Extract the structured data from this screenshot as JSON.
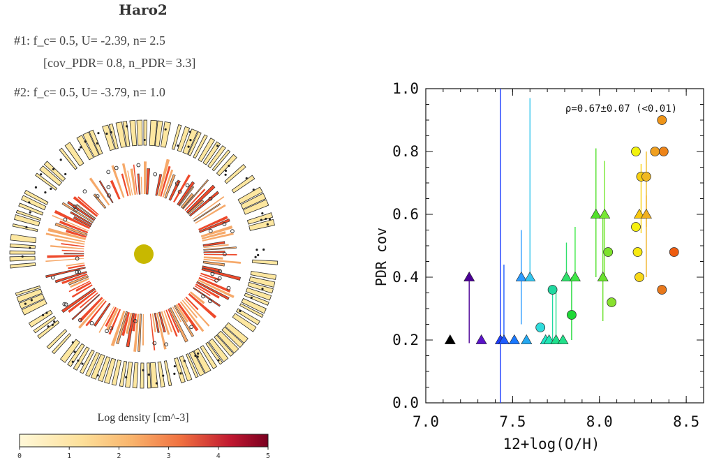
{
  "panel_left": {
    "title": "Haro2",
    "line1": "#1:  f_c= 0.5, U= -2.39, n= 2.5",
    "line2": "[cov_PDR= 0.8, n_PDR= 3.3]",
    "line3": "#2:  f_c= 0.5, U= -3.79, n= 1.0",
    "colorbar_label": "Log density [cm^-3]",
    "colorbar_ticks": [
      "0",
      "1",
      "2",
      "3",
      "4",
      "5"
    ],
    "colors": {
      "light": "#fde7a0",
      "mid": "#f6a96a",
      "red": "#ee4a2c",
      "dark": "#7a0020",
      "center": "#c8b800"
    }
  },
  "chart_data": {
    "type": "scatter",
    "xlabel": "12+log(O/H)",
    "ylabel": "PDR cov",
    "xlim": [
      7.0,
      8.6
    ],
    "ylim": [
      0.0,
      1.0
    ],
    "xticks": [
      "7.0",
      "7.5",
      "8.0",
      "8.5"
    ],
    "yticks": [
      "0.0",
      "0.2",
      "0.4",
      "0.6",
      "0.8",
      "1.0"
    ],
    "annotation": "ρ=0.67±0.07 (<0.01)",
    "points": [
      {
        "x": 7.14,
        "y": 0.2,
        "shape": "triangle",
        "color": "#000000"
      },
      {
        "x": 7.25,
        "y": 0.4,
        "shape": "triangle",
        "color": "#4b0096",
        "err_low": 0.19
      },
      {
        "x": 7.32,
        "y": 0.2,
        "shape": "triangle",
        "color": "#5a13c8"
      },
      {
        "x": 7.43,
        "y": 0.2,
        "shape": "triangle",
        "color": "#1c3cff",
        "err_low": 0.0,
        "err_high": 1.0
      },
      {
        "x": 7.45,
        "y": 0.2,
        "shape": "triangle",
        "color": "#1e5cff",
        "err_high": 0.44
      },
      {
        "x": 7.51,
        "y": 0.2,
        "shape": "triangle",
        "color": "#1a78ff"
      },
      {
        "x": 7.55,
        "y": 0.4,
        "shape": "triangle",
        "color": "#2c9bff",
        "err_low": 0.25,
        "err_high": 0.55
      },
      {
        "x": 7.58,
        "y": 0.2,
        "shape": "triangle",
        "color": "#24a8f0"
      },
      {
        "x": 7.6,
        "y": 0.4,
        "shape": "triangle",
        "color": "#34c6ee",
        "err_high": 0.97
      },
      {
        "x": 7.66,
        "y": 0.24,
        "shape": "circle",
        "color": "#2fdcdc"
      },
      {
        "x": 7.69,
        "y": 0.2,
        "shape": "triangle",
        "color": "#1ee8c8"
      },
      {
        "x": 7.71,
        "y": 0.2,
        "shape": "triangle",
        "color": "#22e6b4"
      },
      {
        "x": 7.73,
        "y": 0.36,
        "shape": "circle",
        "color": "#20d8a0",
        "err_low": 0.2
      },
      {
        "x": 7.75,
        "y": 0.2,
        "shape": "triangle",
        "color": "#1ee08c",
        "err_high": 0.36
      },
      {
        "x": 7.79,
        "y": 0.2,
        "shape": "triangle",
        "color": "#22e08a"
      },
      {
        "x": 7.81,
        "y": 0.4,
        "shape": "triangle",
        "color": "#2fe06a",
        "err_high": 0.51
      },
      {
        "x": 7.84,
        "y": 0.28,
        "shape": "circle",
        "color": "#1ed836",
        "err_low": 0.2,
        "err_high": 0.4
      },
      {
        "x": 7.86,
        "y": 0.4,
        "shape": "triangle",
        "color": "#3ee846",
        "err_high": 0.56
      },
      {
        "x": 7.98,
        "y": 0.6,
        "shape": "triangle",
        "color": "#52e02a",
        "err_low": 0.4,
        "err_high": 0.81
      },
      {
        "x": 8.02,
        "y": 0.4,
        "shape": "triangle",
        "color": "#6ae22e",
        "err_low": 0.26,
        "err_high": 0.6
      },
      {
        "x": 8.03,
        "y": 0.6,
        "shape": "triangle",
        "color": "#78e834",
        "err_low": 0.4,
        "err_high": 0.77
      },
      {
        "x": 8.05,
        "y": 0.48,
        "shape": "circle",
        "color": "#7ee22c"
      },
      {
        "x": 8.07,
        "y": 0.32,
        "shape": "circle",
        "color": "#88e02e"
      },
      {
        "x": 8.21,
        "y": 0.8,
        "shape": "circle",
        "color": "#f2f20c"
      },
      {
        "x": 8.21,
        "y": 0.56,
        "shape": "circle",
        "color": "#f6f010"
      },
      {
        "x": 8.22,
        "y": 0.48,
        "shape": "circle",
        "color": "#f8ea10"
      },
      {
        "x": 8.23,
        "y": 0.4,
        "shape": "circle",
        "color": "#f8d818"
      },
      {
        "x": 8.24,
        "y": 0.72,
        "shape": "circle",
        "color": "#f8d010",
        "err_low": 0.54,
        "err_high": 0.76
      },
      {
        "x": 8.23,
        "y": 0.6,
        "shape": "triangle",
        "color": "#f8c810"
      },
      {
        "x": 8.27,
        "y": 0.72,
        "shape": "circle",
        "color": "#f0b820",
        "err_low": 0.56,
        "err_high": 0.8
      },
      {
        "x": 8.27,
        "y": 0.6,
        "shape": "triangle",
        "color": "#f0b020",
        "err_low": 0.4,
        "err_high": 0.66
      },
      {
        "x": 8.32,
        "y": 0.8,
        "shape": "circle",
        "color": "#f0a020"
      },
      {
        "x": 8.36,
        "y": 0.9,
        "shape": "circle",
        "color": "#ee9418"
      },
      {
        "x": 8.36,
        "y": 0.36,
        "shape": "circle",
        "color": "#e8781c"
      },
      {
        "x": 8.37,
        "y": 0.8,
        "shape": "circle",
        "color": "#ee8418"
      },
      {
        "x": 8.43,
        "y": 0.48,
        "shape": "circle",
        "color": "#ee5c10"
      }
    ]
  }
}
